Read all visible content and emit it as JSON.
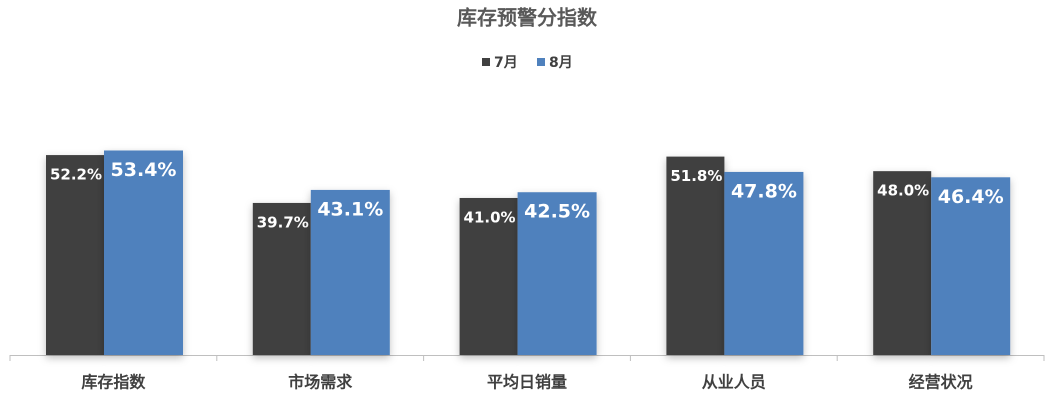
{
  "chart_data": {
    "type": "bar",
    "title": "库存预警分指数",
    "categories": [
      "库存指数",
      "市场需求",
      "平均日销量",
      "从业人员",
      "经营状况"
    ],
    "series": [
      {
        "name": "7月",
        "color": "#404040",
        "values": [
          52.2,
          39.7,
          41.0,
          51.8,
          48.0
        ],
        "value_labels": [
          "52.2%",
          "39.7%",
          "41.0%",
          "51.8%",
          "48.0%"
        ]
      },
      {
        "name": "8月",
        "color": "#4f81bd",
        "values": [
          53.4,
          43.1,
          42.5,
          47.8,
          46.4
        ],
        "value_labels": [
          "53.4%",
          "43.1%",
          "42.5%",
          "47.8%",
          "46.4%"
        ]
      }
    ]
  }
}
